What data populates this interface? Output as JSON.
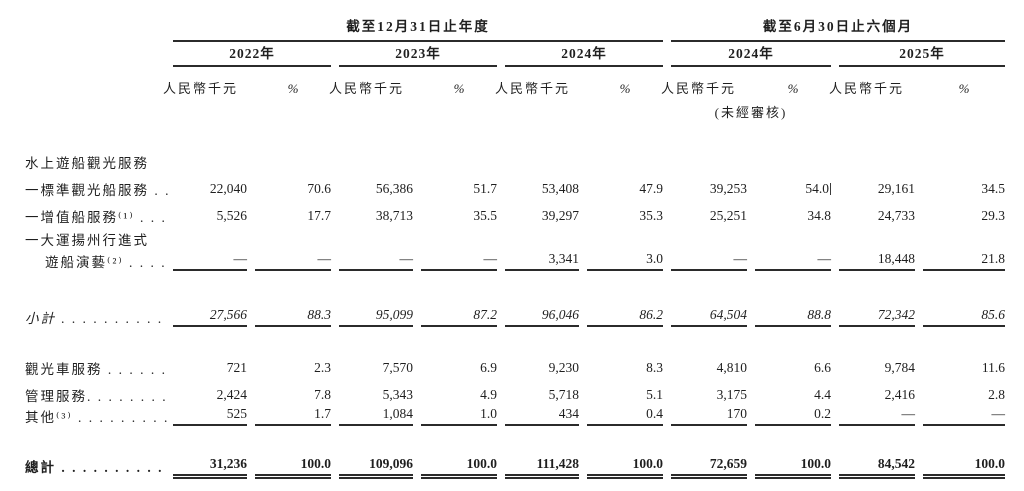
{
  "document": {
    "period_headers": [
      "截至12月31日止年度",
      "截至6月30日止六個月"
    ],
    "year_headers": [
      "2022年",
      "2023年",
      "2024年",
      "2024年",
      "2025年"
    ],
    "unit_label": "人民幣千元",
    "percent_label": "%",
    "unaudited_label": "(未經審核)",
    "rows": [
      {
        "kind": "group-header",
        "label": "水上遊船觀光服務"
      },
      {
        "kind": "item",
        "label": "一標準觀光船服務 . .",
        "values": [
          "22,040",
          "70.6",
          "56,386",
          "51.7",
          "53,408",
          "47.9",
          "39,253",
          "54.0",
          "29,161",
          "34.5"
        ],
        "cursor_after_value_index": 7
      },
      {
        "kind": "item",
        "label": "一增值船服務⁽¹⁾ . . .",
        "values": [
          "5,526",
          "17.7",
          "38,713",
          "35.5",
          "39,297",
          "35.3",
          "25,251",
          "34.8",
          "24,733",
          "29.3"
        ]
      },
      {
        "kind": "item",
        "label": "一大運揚州行進式"
      },
      {
        "kind": "item-cont",
        "label": "遊船演藝⁽²⁾ . . . .",
        "rule": "single",
        "values": [
          "—",
          "—",
          "—",
          "—",
          "3,341",
          "3.0",
          "—",
          "—",
          "18,448",
          "21.8"
        ]
      },
      {
        "kind": "subtotal",
        "label": "小計 . . . . . . . . . .",
        "rule": "single",
        "values": [
          "27,566",
          "88.3",
          "95,099",
          "87.2",
          "96,046",
          "86.2",
          "64,504",
          "88.8",
          "72,342",
          "85.6"
        ]
      },
      {
        "kind": "item",
        "label": "觀光車服務 . . . . . .",
        "values": [
          "721",
          "2.3",
          "7,570",
          "6.9",
          "9,230",
          "8.3",
          "4,810",
          "6.6",
          "9,784",
          "11.6"
        ]
      },
      {
        "kind": "item",
        "label": "管理服務. . . . . . . .",
        "values": [
          "2,424",
          "7.8",
          "5,343",
          "4.9",
          "5,718",
          "5.1",
          "3,175",
          "4.4",
          "2,416",
          "2.8"
        ]
      },
      {
        "kind": "item",
        "label": "其他⁽³⁾ . . . . . . . . .",
        "rule": "single",
        "values": [
          "525",
          "1.7",
          "1,084",
          "1.0",
          "434",
          "0.4",
          "170",
          "0.2",
          "—",
          "—"
        ]
      },
      {
        "kind": "total",
        "label": "總計 . . . . . . . . . .",
        "rule": "double",
        "values": [
          "31,236",
          "100.0",
          "109,096",
          "100.0",
          "111,428",
          "100.0",
          "72,659",
          "100.0",
          "84,542",
          "100.0"
        ]
      }
    ]
  }
}
